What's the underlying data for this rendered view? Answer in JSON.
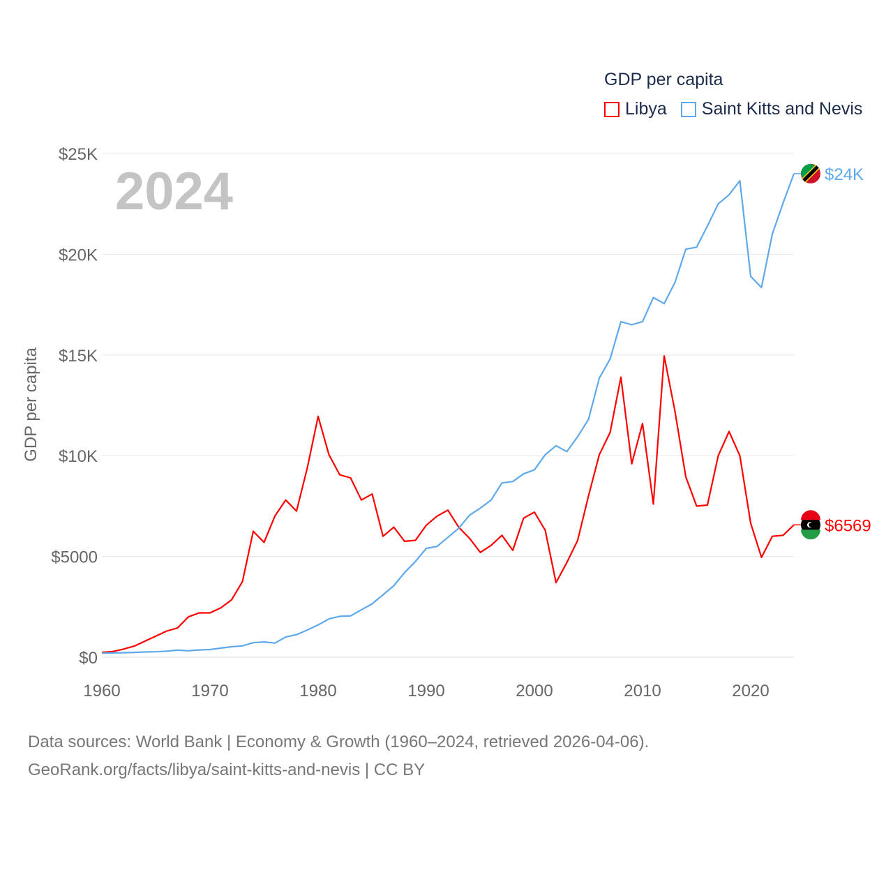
{
  "legend": {
    "title": "GDP per capita",
    "items": [
      {
        "label": "Libya",
        "color": "#ff0000"
      },
      {
        "label": "Saint Kitts and Nevis",
        "color": "#5ea9ec"
      }
    ]
  },
  "year_label": "2024",
  "footer": {
    "line1": "Data sources: World Bank | Economy & Growth (1960–2024, retrieved 2026-04-06).",
    "line2": "GeoRank.org/facts/libya/saint-kitts-and-nevis | CC BY"
  },
  "chart_data": {
    "type": "line",
    "title": "GDP per capita",
    "xlabel": "",
    "ylabel": "GDP per capita",
    "xlim": [
      1960,
      2024
    ],
    "ylim": [
      0,
      25000
    ],
    "grid": true,
    "legend_position": "top-right",
    "xticks": [
      {
        "v": 1960,
        "label": "1960"
      },
      {
        "v": 1970,
        "label": "1970"
      },
      {
        "v": 1980,
        "label": "1980"
      },
      {
        "v": 1990,
        "label": "1990"
      },
      {
        "v": 2000,
        "label": "2000"
      },
      {
        "v": 2010,
        "label": "2010"
      },
      {
        "v": 2020,
        "label": "2020"
      }
    ],
    "yticks": [
      {
        "v": 0,
        "label": "$0"
      },
      {
        "v": 5000,
        "label": "$5000"
      },
      {
        "v": 10000,
        "label": "$10K"
      },
      {
        "v": 15000,
        "label": "$15K"
      },
      {
        "v": 20000,
        "label": "$20K"
      },
      {
        "v": 25000,
        "label": "$25K"
      }
    ],
    "x_start": 1960,
    "series": [
      {
        "name": "Libya",
        "color": "#ff0000",
        "end_label": "$6569",
        "values": [
          240,
          280,
          400,
          550,
          800,
          1050,
          1300,
          1450,
          2000,
          2200,
          2200,
          2450,
          2850,
          3750,
          6250,
          5700,
          7000,
          7800,
          7250,
          9400,
          11950,
          10050,
          9050,
          8900,
          7800,
          8100,
          6000,
          6450,
          5750,
          5800,
          6550,
          7000,
          7300,
          6450,
          5900,
          5200,
          5550,
          6050,
          5300,
          6900,
          7200,
          6300,
          3700,
          4700,
          5800,
          8000,
          10050,
          11150,
          13900,
          9600,
          11600,
          7600,
          14950,
          12200,
          8950,
          7500,
          7550,
          10000,
          11200,
          10000,
          6650,
          4950,
          6000,
          6050,
          6569
        ]
      },
      {
        "name": "Saint Kitts and Nevis",
        "color": "#5ea9ec",
        "end_label": "$24K",
        "values": [
          200,
          210,
          220,
          240,
          260,
          270,
          300,
          350,
          320,
          360,
          380,
          450,
          520,
          560,
          720,
          760,
          700,
          1000,
          1120,
          1350,
          1600,
          1900,
          2030,
          2050,
          2350,
          2650,
          3100,
          3550,
          4200,
          4750,
          5400,
          5500,
          5950,
          6400,
          7050,
          7400,
          7800,
          8650,
          8720,
          9100,
          9300,
          10050,
          10500,
          10200,
          10950,
          11800,
          13850,
          14800,
          16650,
          16500,
          16650,
          17850,
          17550,
          18600,
          20250,
          20350,
          21400,
          22500,
          22950,
          23650,
          18900,
          18350,
          21000,
          22550,
          24000
        ]
      }
    ]
  }
}
